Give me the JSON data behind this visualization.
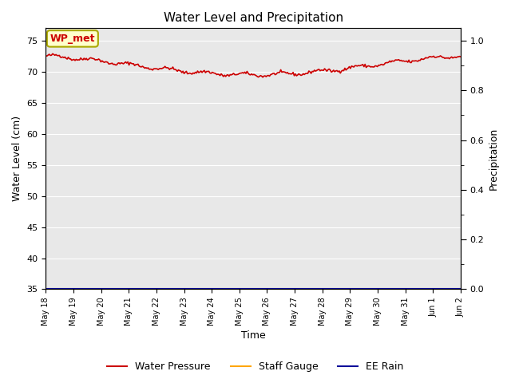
{
  "title": "Water Level and Precipitation",
  "xlabel": "Time",
  "ylabel_left": "Water Level (cm)",
  "ylabel_right": "Precipitation",
  "annotation_text": "WP_met",
  "annotation_color": "#cc0000",
  "annotation_bg": "#ffffcc",
  "annotation_border": "#aaa800",
  "ylim_left": [
    35,
    77
  ],
  "ylim_right": [
    0.0,
    1.05
  ],
  "yticks_left": [
    35,
    40,
    45,
    50,
    55,
    60,
    65,
    70,
    75
  ],
  "yticks_right": [
    0.0,
    0.2,
    0.4,
    0.6,
    0.8,
    1.0
  ],
  "fig_bg_color": "#ffffff",
  "plot_bg_color": "#e8e8e8",
  "line_color_wp": "#cc0000",
  "line_color_staff": "#ffa500",
  "line_color_rain": "#000099",
  "legend_labels": [
    "Water Pressure",
    "Staff Gauge",
    "EE Rain"
  ],
  "legend_colors": [
    "#cc0000",
    "#ffa500",
    "#000099"
  ],
  "num_points": 370
}
